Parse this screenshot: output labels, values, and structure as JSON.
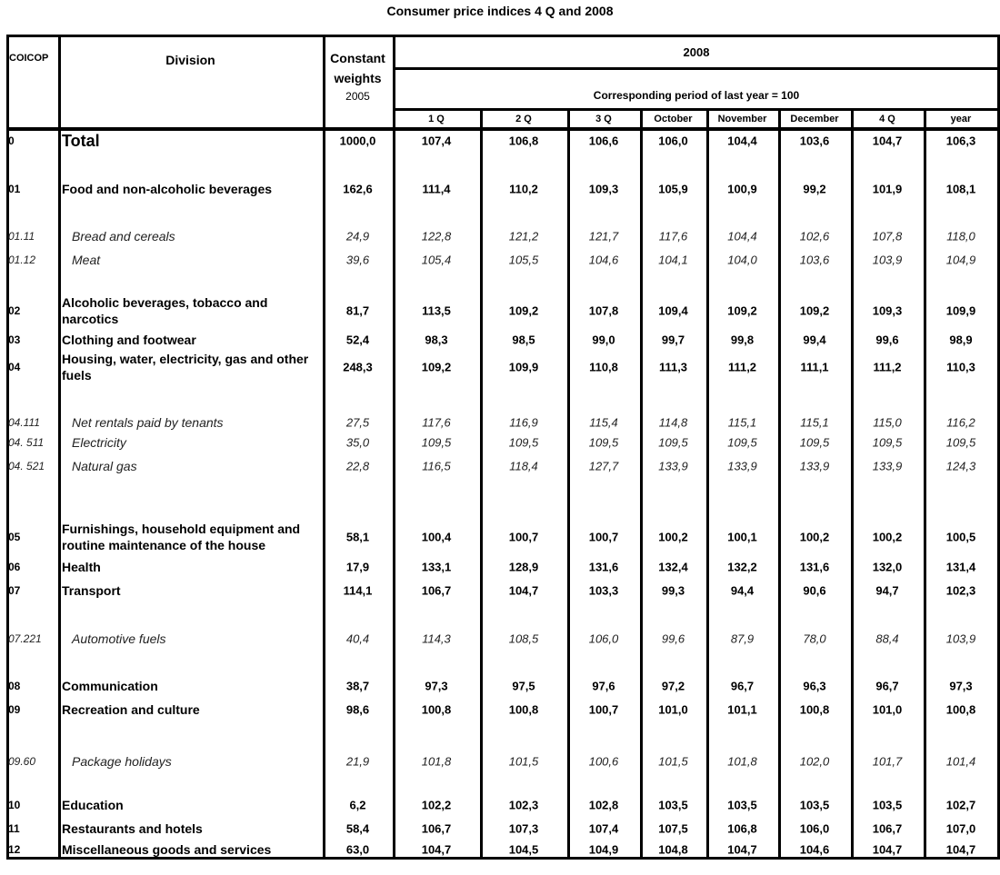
{
  "title": "Consumer price indices 4 Q and 2008",
  "header": {
    "coicop": "COICOP",
    "division": "Division",
    "weights_line1": "Constant",
    "weights_line2": "weights",
    "weights_line3": "2005",
    "year": "2008",
    "base": "Corresponding period of last year = 100",
    "columns": [
      "1 Q",
      "2 Q",
      "3 Q",
      "October",
      "November",
      "December",
      "4 Q",
      "year"
    ]
  },
  "rows": [
    {
      "code": "0",
      "label": "Total",
      "weight": "1000,0",
      "values": [
        "107,4",
        "106,8",
        "106,6",
        "106,0",
        "104,4",
        "103,6",
        "104,7",
        "106,3"
      ],
      "style": "total"
    },
    {
      "code": "01",
      "label": "Food and non-alcoholic beverages",
      "weight": "162,6",
      "values": [
        "111,4",
        "110,2",
        "109,3",
        "105,9",
        "100,9",
        "99,2",
        "101,9",
        "108,1"
      ],
      "style": "bold"
    },
    {
      "code": "01.11",
      "label": "Bread and cereals",
      "weight": "24,9",
      "values": [
        "122,8",
        "121,2",
        "121,7",
        "117,6",
        "104,4",
        "102,6",
        "107,8",
        "118,0"
      ],
      "style": "italic"
    },
    {
      "code": "01.12",
      "label": "Meat",
      "weight": "39,6",
      "values": [
        "105,4",
        "105,5",
        "104,6",
        "104,1",
        "104,0",
        "103,6",
        "103,9",
        "104,9"
      ],
      "style": "italic"
    },
    {
      "code": "02",
      "label": "Alcoholic beverages, tobacco and narcotics",
      "weight": "81,7",
      "values": [
        "113,5",
        "109,2",
        "107,8",
        "109,4",
        "109,2",
        "109,2",
        "109,3",
        "109,9"
      ],
      "style": "bold"
    },
    {
      "code": "03",
      "label": "Clothing and footwear",
      "weight": "52,4",
      "values": [
        "98,3",
        "98,5",
        "99,0",
        "99,7",
        "99,8",
        "99,4",
        "99,6",
        "98,9"
      ],
      "style": "bold"
    },
    {
      "code": "04",
      "label": "Housing, water, electricity, gas and other fuels",
      "weight": "248,3",
      "values": [
        "109,2",
        "109,9",
        "110,8",
        "111,3",
        "111,2",
        "111,1",
        "111,2",
        "110,3"
      ],
      "style": "bold"
    },
    {
      "code": "04.111",
      "label": "Net rentals paid by tenants",
      "weight": "27,5",
      "values": [
        "117,6",
        "116,9",
        "115,4",
        "114,8",
        "115,1",
        "115,1",
        "115,0",
        "116,2"
      ],
      "style": "italic"
    },
    {
      "code": "04. 511",
      "label": "Electricity",
      "weight": "35,0",
      "values": [
        "109,5",
        "109,5",
        "109,5",
        "109,5",
        "109,5",
        "109,5",
        "109,5",
        "109,5"
      ],
      "style": "italic"
    },
    {
      "code": "04. 521",
      "label": "Natural gas",
      "weight": "22,8",
      "values": [
        "116,5",
        "118,4",
        "127,7",
        "133,9",
        "133,9",
        "133,9",
        "133,9",
        "124,3"
      ],
      "style": "italic"
    },
    {
      "code": "05",
      "label": "Furnishings, household equipment and routine maintenance of the house",
      "weight": "58,1",
      "values": [
        "100,4",
        "100,7",
        "100,7",
        "100,2",
        "100,1",
        "100,2",
        "100,2",
        "100,5"
      ],
      "style": "bold"
    },
    {
      "code": "06",
      "label": "Health",
      "weight": "17,9",
      "values": [
        "133,1",
        "128,9",
        "131,6",
        "132,4",
        "132,2",
        "131,6",
        "132,0",
        "131,4"
      ],
      "style": "bold"
    },
    {
      "code": "07",
      "label": "Transport",
      "weight": "114,1",
      "values": [
        "106,7",
        "104,7",
        "103,3",
        "99,3",
        "94,4",
        "90,6",
        "94,7",
        "102,3"
      ],
      "style": "bold"
    },
    {
      "code": "07.221",
      "label": "Automotive fuels",
      "weight": "40,4",
      "values": [
        "114,3",
        "108,5",
        "106,0",
        "99,6",
        "87,9",
        "78,0",
        "88,4",
        "103,9"
      ],
      "style": "italic"
    },
    {
      "code": "08",
      "label": "Communication",
      "weight": "38,7",
      "values": [
        "97,3",
        "97,5",
        "97,6",
        "97,2",
        "96,7",
        "96,3",
        "96,7",
        "97,3"
      ],
      "style": "bold"
    },
    {
      "code": "09",
      "label": "Recreation and culture",
      "weight": "98,6",
      "values": [
        "100,8",
        "100,8",
        "100,7",
        "101,0",
        "101,1",
        "100,8",
        "101,0",
        "100,8"
      ],
      "style": "bold"
    },
    {
      "code": "09.60",
      "label": "Package holidays",
      "weight": "21,9",
      "values": [
        "101,8",
        "101,5",
        "100,6",
        "101,5",
        "101,8",
        "102,0",
        "101,7",
        "101,4"
      ],
      "style": "italic"
    },
    {
      "code": "10",
      "label": "Education",
      "weight": "6,2",
      "values": [
        "102,2",
        "102,3",
        "102,8",
        "103,5",
        "103,5",
        "103,5",
        "103,5",
        "102,7"
      ],
      "style": "bold"
    },
    {
      "code": "11",
      "label": "Restaurants and hotels",
      "weight": "58,4",
      "values": [
        "106,7",
        "107,3",
        "107,4",
        "107,5",
        "106,8",
        "106,0",
        "106,7",
        "107,0"
      ],
      "style": "bold"
    },
    {
      "code": "12",
      "label": "Miscellaneous goods and services",
      "weight": "63,0",
      "values": [
        "104,7",
        "104,5",
        "104,9",
        "104,8",
        "104,7",
        "104,6",
        "104,7",
        "104,7"
      ],
      "style": "bold"
    }
  ]
}
